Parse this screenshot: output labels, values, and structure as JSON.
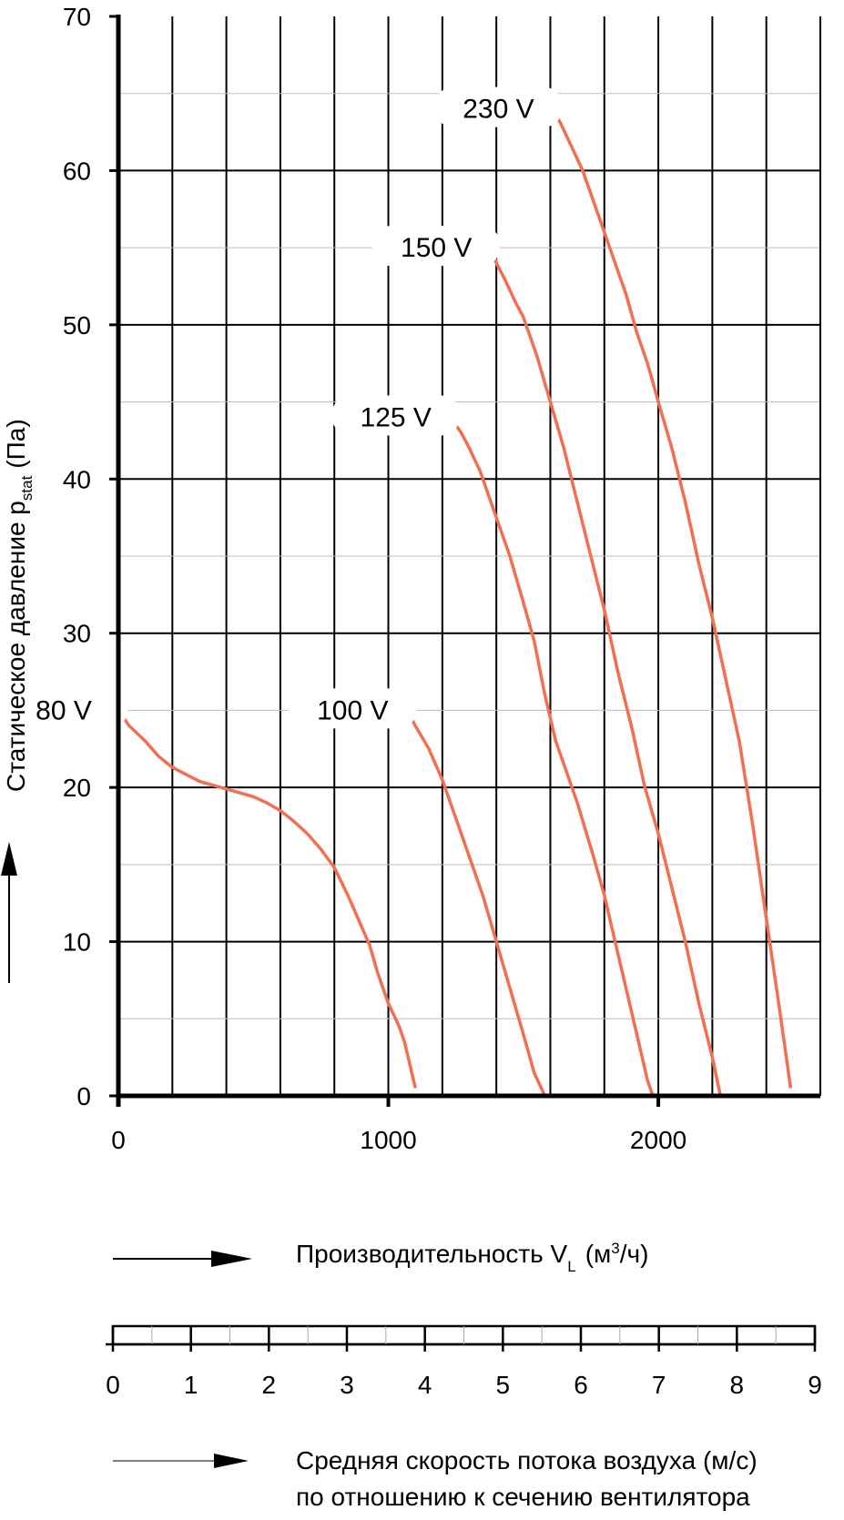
{
  "chart_data": {
    "type": "line",
    "title": "",
    "xlabel": "Производительность V",
    "xlabel_sub": "L",
    "xlabel_unit_pre": "(м",
    "xlabel_unit_sup": "3",
    "xlabel_unit_post": "/ч)",
    "ylabel": "Статическое давление p",
    "ylabel_sub": "stat",
    "ylabel_unit": "(Па)",
    "xlim": [
      0,
      2600
    ],
    "ylim": [
      0,
      70
    ],
    "x_ticks": [
      "0",
      "1000",
      "2000"
    ],
    "y_ticks": [
      "0",
      "10",
      "20",
      "30",
      "40",
      "50",
      "60",
      "70"
    ],
    "grid": true,
    "series_color": "#f07050",
    "series": [
      {
        "name": "80 V",
        "x": [
          0,
          40,
          100,
          150,
          200,
          300,
          400,
          500,
          550,
          600,
          650,
          700,
          750,
          800,
          850,
          900,
          930,
          960,
          1000,
          1040,
          1060,
          1080,
          1100
        ],
        "y": [
          25,
          24,
          23,
          22,
          21.3,
          20.4,
          19.9,
          19.4,
          19.0,
          18.5,
          17.8,
          17.0,
          16.0,
          14.8,
          13.0,
          11.0,
          9.8,
          8.0,
          6.0,
          4.5,
          3.5,
          2.0,
          0.5
        ]
      },
      {
        "name": "100 V",
        "x": [
          1070,
          1100,
          1150,
          1200,
          1250,
          1300,
          1350,
          1400,
          1450,
          1500,
          1540,
          1580
        ],
        "y": [
          25,
          24,
          22.5,
          20.5,
          18,
          15.5,
          13,
          10,
          7,
          4,
          1.5,
          0
        ]
      },
      {
        "name": "125 V",
        "x": [
          1230,
          1270,
          1300,
          1340,
          1380,
          1420,
          1450,
          1500,
          1540,
          1580,
          1620,
          1660,
          1700,
          1760,
          1800,
          1840,
          1880,
          1920,
          1960,
          1980
        ],
        "y": [
          44,
          43,
          42,
          40.5,
          38.5,
          36.5,
          35,
          32,
          29.5,
          26,
          23,
          21,
          19,
          15.5,
          13,
          10,
          7,
          4,
          1,
          0
        ]
      },
      {
        "name": "150 V",
        "x": [
          1380,
          1400,
          1430,
          1470,
          1500,
          1550,
          1600,
          1650,
          1700,
          1750,
          1800,
          1850,
          1900,
          1950,
          2000,
          2050,
          2100,
          2150,
          2200,
          2230
        ],
        "y": [
          55,
          54,
          53,
          51.5,
          50.5,
          48,
          45,
          42,
          38.5,
          35,
          31.5,
          27.5,
          24,
          20,
          17,
          13.5,
          10,
          6,
          2.5,
          0
        ]
      },
      {
        "name": "230 V",
        "x": [
          1610,
          1640,
          1680,
          1720,
          1760,
          1800,
          1840,
          1880,
          1920,
          1960,
          2000,
          2050,
          2100,
          2150,
          2200,
          2250,
          2300,
          2350,
          2400,
          2450,
          2490
        ],
        "y": [
          64,
          63,
          61.5,
          60,
          58,
          56,
          54,
          52,
          49.5,
          47.5,
          45,
          42,
          38.5,
          34.5,
          31,
          27,
          23,
          17.5,
          11.5,
          5.5,
          0.5
        ]
      }
    ]
  },
  "velocity_scale": {
    "ticks": [
      "0",
      "1",
      "2",
      "3",
      "4",
      "5",
      "6",
      "7",
      "8",
      "9"
    ],
    "label_line1": "Средняя скорость потока воздуха (м/с)",
    "label_line2": "по отношению к сечению вентилятора"
  }
}
